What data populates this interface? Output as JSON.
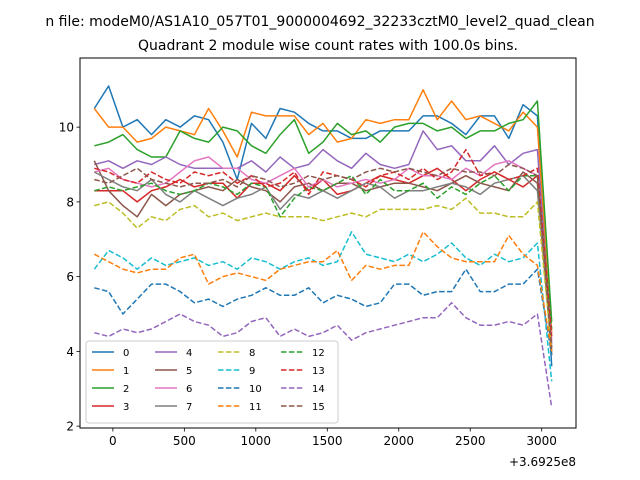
{
  "header": {
    "suptitle": "n file: modeM0/AS1A10_057T01_9000004692_32233cztM0_level2_quad_clean",
    "title": "Quadrant 2 module wise count rates with 100.0s bins."
  },
  "chart_data": {
    "type": "line",
    "title": "Quadrant 2 module wise count rates with 100.0s bins.",
    "xlabel": "",
    "ylabel": "",
    "x_offset_label": "+3.6925e8",
    "xlim": [
      -230,
      3240
    ],
    "ylim": [
      1.95,
      11.85
    ],
    "xticks": [
      0,
      500,
      1000,
      1500,
      2000,
      2500,
      3000
    ],
    "yticks": [
      2,
      4,
      6,
      8,
      10
    ],
    "legend_position": "lower-left",
    "legend_columns": 4,
    "grid": false,
    "x": [
      -130,
      -30,
      70,
      170,
      270,
      370,
      470,
      570,
      670,
      770,
      870,
      970,
      1070,
      1170,
      1270,
      1370,
      1470,
      1570,
      1670,
      1770,
      1870,
      1970,
      2070,
      2170,
      2270,
      2370,
      2470,
      2570,
      2670,
      2770,
      2870,
      2970,
      3070
    ],
    "series": [
      {
        "name": "0",
        "color": "#1f77b4",
        "linestyle": "solid",
        "values": [
          10.5,
          11.1,
          10.0,
          10.2,
          9.8,
          10.2,
          10.0,
          10.3,
          10.2,
          9.6,
          8.6,
          10.1,
          9.7,
          10.5,
          10.4,
          10.1,
          9.9,
          9.9,
          9.7,
          9.7,
          9.9,
          9.9,
          9.9,
          10.3,
          10.3,
          10.1,
          9.8,
          10.3,
          10.3,
          9.7,
          10.6,
          10.3,
          3.6
        ]
      },
      {
        "name": "1",
        "color": "#ff7f0e",
        "linestyle": "solid",
        "values": [
          10.5,
          10.0,
          10.0,
          9.6,
          9.7,
          10.0,
          9.9,
          9.8,
          10.5,
          9.9,
          9.2,
          10.4,
          10.3,
          10.3,
          10.3,
          9.8,
          10.1,
          9.6,
          9.7,
          10.2,
          10.1,
          10.2,
          10.2,
          11.0,
          10.2,
          10.7,
          10.2,
          10.3,
          10.1,
          9.9,
          10.4,
          10.0,
          4.5
        ]
      },
      {
        "name": "2",
        "color": "#2ca02c",
        "linestyle": "solid",
        "values": [
          9.5,
          9.6,
          9.8,
          9.4,
          9.2,
          9.2,
          9.9,
          9.7,
          9.6,
          10.0,
          9.9,
          9.5,
          9.3,
          9.8,
          10.2,
          9.3,
          9.6,
          10.1,
          9.8,
          9.9,
          9.6,
          10.0,
          10.1,
          10.1,
          9.9,
          10.0,
          9.7,
          9.9,
          9.9,
          10.1,
          10.2,
          10.7,
          4.8
        ]
      },
      {
        "name": "3",
        "color": "#d62728",
        "linestyle": "solid",
        "values": [
          8.3,
          8.3,
          8.3,
          8.0,
          8.3,
          8.4,
          8.6,
          8.4,
          8.5,
          8.5,
          8.1,
          8.5,
          8.5,
          8.3,
          8.7,
          8.3,
          8.6,
          8.2,
          8.3,
          8.5,
          8.7,
          8.6,
          8.5,
          8.7,
          8.9,
          8.6,
          8.3,
          8.6,
          8.8,
          8.6,
          8.4,
          8.7,
          4.0
        ]
      },
      {
        "name": "4",
        "color": "#9467bd",
        "linestyle": "solid",
        "values": [
          9.0,
          9.1,
          8.9,
          9.1,
          9.0,
          9.2,
          9.0,
          8.9,
          8.9,
          8.9,
          8.9,
          9.1,
          8.8,
          9.2,
          8.9,
          9.0,
          9.4,
          9.1,
          8.9,
          9.3,
          9.0,
          8.9,
          9.0,
          9.9,
          9.4,
          9.5,
          9.1,
          9.1,
          9.5,
          9.0,
          9.3,
          9.4,
          4.2
        ]
      },
      {
        "name": "5",
        "color": "#8c564b",
        "linestyle": "solid",
        "values": [
          9.1,
          8.3,
          7.9,
          7.6,
          8.2,
          7.9,
          8.2,
          8.3,
          8.4,
          8.3,
          8.6,
          8.4,
          8.3,
          8.0,
          8.4,
          8.5,
          8.3,
          8.5,
          8.5,
          8.3,
          8.4,
          8.5,
          8.5,
          8.4,
          8.3,
          8.5,
          8.7,
          8.5,
          8.4,
          8.3,
          8.8,
          8.5,
          3.9
        ]
      },
      {
        "name": "6",
        "color": "#e377c2",
        "linestyle": "solid",
        "values": [
          8.8,
          8.9,
          8.6,
          8.5,
          8.4,
          8.5,
          8.8,
          9.1,
          9.2,
          8.9,
          8.9,
          8.6,
          8.5,
          8.7,
          8.9,
          8.4,
          8.6,
          8.4,
          8.5,
          8.6,
          8.5,
          8.6,
          8.9,
          8.7,
          8.7,
          8.6,
          8.9,
          8.7,
          9.0,
          9.1,
          8.9,
          8.7,
          4.3
        ]
      },
      {
        "name": "7",
        "color": "#7f7f7f",
        "linestyle": "solid",
        "values": [
          8.8,
          8.6,
          8.4,
          8.3,
          8.6,
          8.2,
          8.0,
          8.3,
          8.1,
          7.9,
          8.1,
          8.2,
          8.4,
          7.8,
          8.2,
          8.1,
          8.3,
          8.1,
          8.3,
          8.5,
          8.4,
          8.1,
          8.3,
          8.3,
          8.4,
          8.5,
          8.4,
          8.2,
          8.5,
          8.6,
          8.7,
          8.3,
          4.1
        ]
      },
      {
        "name": "8",
        "color": "#bcbd22",
        "linestyle": "dashed",
        "values": [
          7.9,
          8.0,
          7.7,
          7.3,
          7.6,
          7.5,
          7.8,
          7.9,
          7.6,
          7.7,
          7.5,
          7.6,
          7.7,
          7.6,
          7.6,
          7.6,
          7.5,
          7.6,
          7.7,
          7.6,
          7.8,
          7.8,
          7.8,
          7.8,
          7.9,
          7.8,
          8.1,
          7.7,
          7.7,
          7.6,
          7.6,
          8.0,
          4.0
        ]
      },
      {
        "name": "9",
        "color": "#17becf",
        "linestyle": "dashed",
        "values": [
          6.2,
          6.7,
          6.5,
          6.2,
          6.5,
          6.3,
          6.4,
          6.5,
          6.3,
          6.4,
          6.2,
          6.5,
          6.4,
          6.2,
          6.4,
          6.5,
          6.3,
          6.4,
          7.2,
          6.6,
          6.5,
          6.4,
          6.6,
          6.4,
          6.6,
          6.9,
          6.5,
          6.3,
          6.6,
          6.4,
          6.5,
          6.9,
          3.2
        ]
      },
      {
        "name": "10",
        "color": "#1f77b4",
        "linestyle": "dashed",
        "values": [
          5.7,
          5.6,
          5.0,
          5.4,
          5.8,
          5.8,
          5.6,
          5.3,
          5.4,
          5.2,
          5.4,
          5.5,
          5.7,
          5.5,
          5.5,
          5.7,
          5.3,
          5.5,
          5.4,
          5.2,
          5.3,
          5.8,
          5.8,
          5.5,
          5.6,
          5.6,
          6.2,
          5.6,
          5.6,
          5.8,
          5.8,
          6.2,
          3.9
        ]
      },
      {
        "name": "11",
        "color": "#ff7f0e",
        "linestyle": "dashed",
        "values": [
          6.6,
          6.4,
          6.2,
          6.1,
          6.2,
          6.2,
          6.5,
          6.6,
          5.8,
          6.0,
          6.1,
          6.0,
          5.9,
          6.2,
          6.3,
          6.4,
          6.4,
          6.7,
          5.9,
          6.3,
          6.2,
          6.3,
          6.3,
          7.2,
          6.8,
          6.5,
          6.4,
          6.4,
          6.4,
          7.1,
          6.6,
          6.3,
          4.0
        ]
      },
      {
        "name": "12",
        "color": "#2ca02c",
        "linestyle": "dashed",
        "values": [
          8.3,
          8.4,
          8.3,
          8.4,
          8.5,
          8.3,
          8.2,
          8.3,
          8.5,
          8.4,
          8.2,
          8.5,
          8.4,
          7.6,
          8.1,
          8.4,
          8.3,
          8.5,
          8.7,
          8.2,
          8.6,
          8.3,
          8.3,
          8.5,
          8.1,
          8.4,
          8.2,
          8.5,
          8.7,
          8.3,
          8.7,
          8.7,
          4.6
        ]
      },
      {
        "name": "13",
        "color": "#d62728",
        "linestyle": "dashed",
        "values": [
          8.9,
          8.8,
          8.6,
          8.5,
          8.8,
          8.6,
          8.5,
          8.8,
          8.7,
          8.8,
          8.5,
          8.7,
          8.4,
          8.5,
          8.8,
          8.2,
          8.8,
          8.7,
          8.6,
          8.4,
          8.7,
          8.8,
          8.6,
          8.9,
          8.6,
          8.8,
          9.4,
          8.7,
          8.8,
          8.6,
          8.7,
          8.9,
          4.4
        ]
      },
      {
        "name": "14",
        "color": "#9467bd",
        "linestyle": "dashed",
        "values": [
          4.5,
          4.4,
          4.6,
          4.5,
          4.6,
          4.8,
          5.0,
          4.8,
          4.7,
          4.4,
          4.5,
          4.8,
          4.9,
          4.4,
          4.6,
          4.4,
          4.5,
          4.7,
          4.3,
          4.5,
          4.6,
          4.7,
          4.8,
          4.9,
          4.9,
          5.3,
          4.9,
          4.7,
          4.7,
          4.8,
          4.7,
          5.0,
          2.5
        ]
      },
      {
        "name": "15",
        "color": "#8c564b",
        "linestyle": "dashed",
        "values": [
          8.6,
          8.5,
          8.7,
          8.9,
          8.6,
          8.5,
          8.4,
          8.5,
          8.5,
          8.6,
          8.4,
          8.7,
          8.6,
          8.4,
          8.5,
          8.7,
          8.6,
          8.7,
          8.6,
          8.8,
          8.9,
          8.8,
          8.9,
          8.8,
          8.7,
          8.9,
          8.8,
          8.8,
          8.7,
          9.0,
          8.9,
          8.7,
          4.1
        ]
      }
    ]
  }
}
